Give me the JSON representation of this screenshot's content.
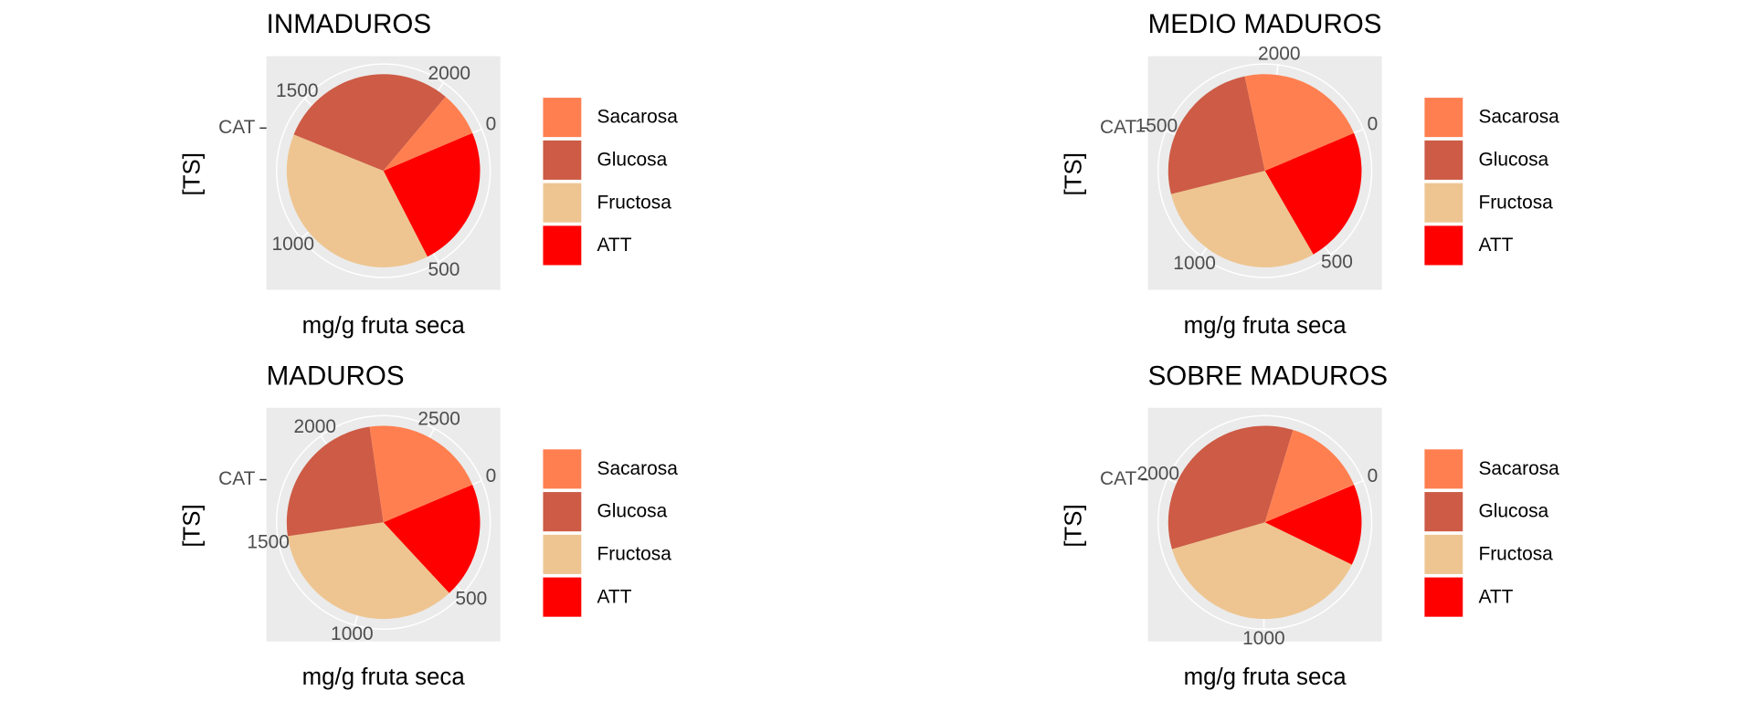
{
  "chart_data": [
    {
      "type": "pie",
      "title": "INMADUROS",
      "x_label": "mg/g fruta seca",
      "y_label": "[TS]",
      "categories": [
        "CAT"
      ],
      "series": [
        {
          "name": "Sacarosa",
          "color": "#ff7f50",
          "values": [
            165
          ]
        },
        {
          "name": "Glucosa",
          "color": "#cd5b45",
          "values": [
            660
          ]
        },
        {
          "name": "Fructosa",
          "color": "#eec591",
          "values": [
            850
          ]
        },
        {
          "name": "ATT",
          "color": "#ff0000",
          "values": [
            525
          ]
        }
      ],
      "ylim": [
        0,
        2200
      ],
      "yticks": [
        0,
        500,
        1000,
        1500,
        2000
      ]
    },
    {
      "type": "pie",
      "title": "MEDIO MADUROS",
      "x_label": "mg/g fruta seca",
      "y_label": "[TS]",
      "categories": [
        "CAT"
      ],
      "series": [
        {
          "name": "Sacarosa",
          "color": "#ff7f50",
          "values": [
            527
          ]
        },
        {
          "name": "Glucosa",
          "color": "#cd5b45",
          "values": [
            613
          ]
        },
        {
          "name": "Fructosa",
          "color": "#eec591",
          "values": [
            707
          ]
        },
        {
          "name": "ATT",
          "color": "#ff0000",
          "values": [
            553
          ]
        }
      ],
      "ylim": [
        0,
        2400
      ],
      "yticks": [
        0,
        500,
        1000,
        1500,
        2000
      ]
    },
    {
      "type": "pie",
      "title": "MADUROS",
      "x_label": "mg/g fruta seca",
      "y_label": "[TS]",
      "categories": [
        "CAT"
      ],
      "series": [
        {
          "name": "Sacarosa",
          "color": "#ff7f50",
          "values": [
            585
          ]
        },
        {
          "name": "Glucosa",
          "color": "#cd5b45",
          "values": [
            700
          ]
        },
        {
          "name": "Fructosa",
          "color": "#eec591",
          "values": [
            970
          ]
        },
        {
          "name": "ATT",
          "color": "#ff0000",
          "values": [
            545
          ]
        }
      ],
      "ylim": [
        0,
        2800
      ],
      "yticks": [
        0,
        500,
        1000,
        1500,
        2000,
        2500
      ]
    },
    {
      "type": "pie",
      "title": "SOBRE MADUROS",
      "x_label": "mg/g fruta seca",
      "y_label": "[TS]",
      "categories": [
        "CAT"
      ],
      "series": [
        {
          "name": "Sacarosa",
          "color": "#ff7f50",
          "values": [
            440
          ]
        },
        {
          "name": "Glucosa",
          "color": "#cd5b45",
          "values": [
            1083
          ]
        },
        {
          "name": "Fructosa",
          "color": "#eec591",
          "values": [
            1215
          ]
        },
        {
          "name": "ATT",
          "color": "#ff0000",
          "values": [
            431
          ]
        }
      ],
      "ylim": [
        0,
        3170
      ],
      "yticks": [
        0,
        1000,
        2000
      ]
    }
  ]
}
